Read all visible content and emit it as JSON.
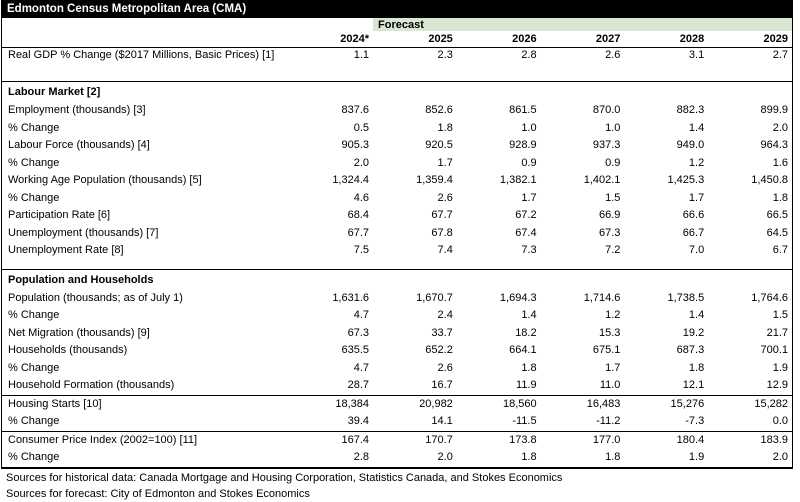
{
  "title": "Edmonton Census Metropolitan Area (CMA)",
  "colors": {
    "title_bg": "#000000",
    "title_fg": "#ffffff",
    "forecast_band": "#d9e6d2",
    "border": "#000000"
  },
  "header": {
    "forecast_label": "Forecast",
    "years": [
      "2024*",
      "2025",
      "2026",
      "2027",
      "2028",
      "2029"
    ]
  },
  "table": {
    "rows": [
      {
        "kind": "data",
        "variant": "first",
        "rule": true,
        "label": "Real GDP % Change ($2017 Millions, Basic Prices) [1]",
        "values": [
          "1.1",
          "2.3",
          "2.8",
          "2.6",
          "3.1",
          "2.7"
        ]
      },
      {
        "kind": "spacer-tall"
      },
      {
        "kind": "section",
        "rule": true,
        "label": "Labour Market [2]"
      },
      {
        "kind": "data",
        "label": "Employment (thousands) [3]",
        "values": [
          "837.6",
          "852.6",
          "861.5",
          "870.0",
          "882.3",
          "899.9"
        ]
      },
      {
        "kind": "data",
        "label": "% Change",
        "values": [
          "0.5",
          "1.8",
          "1.0",
          "1.0",
          "1.4",
          "2.0"
        ]
      },
      {
        "kind": "data",
        "label": "Labour Force (thousands) [4]",
        "values": [
          "905.3",
          "920.5",
          "928.9",
          "937.3",
          "949.0",
          "964.3"
        ]
      },
      {
        "kind": "data",
        "label": "% Change",
        "values": [
          "2.0",
          "1.7",
          "0.9",
          "0.9",
          "1.2",
          "1.6"
        ]
      },
      {
        "kind": "data",
        "label": "Working Age Population (thousands) [5]",
        "values": [
          "1,324.4",
          "1,359.4",
          "1,382.1",
          "1,402.1",
          "1,425.3",
          "1,450.8"
        ]
      },
      {
        "kind": "data",
        "label": "% Change",
        "values": [
          "4.6",
          "2.6",
          "1.7",
          "1.5",
          "1.7",
          "1.8"
        ]
      },
      {
        "kind": "data",
        "label": "Participation Rate [6]",
        "values": [
          "68.4",
          "67.7",
          "67.2",
          "66.9",
          "66.6",
          "66.5"
        ]
      },
      {
        "kind": "data",
        "label": "Unemployment (thousands) [7]",
        "values": [
          "67.7",
          "67.8",
          "67.4",
          "67.3",
          "66.7",
          "64.5"
        ]
      },
      {
        "kind": "data",
        "label": "Unemployment Rate [8]",
        "values": [
          "7.5",
          "7.4",
          "7.3",
          "7.2",
          "7.0",
          "6.7"
        ]
      },
      {
        "kind": "spacer-short"
      },
      {
        "kind": "section",
        "rule": true,
        "label": "Population and Households"
      },
      {
        "kind": "data",
        "label": "Population (thousands; as of July 1)",
        "values": [
          "1,631.6",
          "1,670.7",
          "1,694.3",
          "1,714.6",
          "1,738.5",
          "1,764.6"
        ]
      },
      {
        "kind": "data",
        "label": "% Change",
        "values": [
          "4.7",
          "2.4",
          "1.4",
          "1.2",
          "1.4",
          "1.5"
        ]
      },
      {
        "kind": "data",
        "label": "Net Migration (thousands) [9]",
        "values": [
          "67.3",
          "33.7",
          "18.2",
          "15.3",
          "19.2",
          "21.7"
        ]
      },
      {
        "kind": "data",
        "label": "Households (thousands)",
        "values": [
          "635.5",
          "652.2",
          "664.1",
          "675.1",
          "687.3",
          "700.1"
        ]
      },
      {
        "kind": "data",
        "label": "% Change",
        "values": [
          "4.7",
          "2.6",
          "1.8",
          "1.7",
          "1.8",
          "1.9"
        ]
      },
      {
        "kind": "data",
        "label": "Household Formation (thousands)",
        "values": [
          "28.7",
          "16.7",
          "11.9",
          "11.0",
          "12.1",
          "12.9"
        ]
      },
      {
        "kind": "data",
        "rule": true,
        "label": "Housing Starts [10]",
        "values": [
          "18,384",
          "20,982",
          "18,560",
          "16,483",
          "15,276",
          "15,282"
        ]
      },
      {
        "kind": "data",
        "label": "% Change",
        "values": [
          "39.4",
          "14.1",
          "-11.5",
          "-11.2",
          "-7.3",
          "0.0"
        ]
      },
      {
        "kind": "data",
        "rule": true,
        "label": "Consumer Price Index (2002=100) [11]",
        "values": [
          "167.4",
          "170.7",
          "173.8",
          "177.0",
          "180.4",
          "183.9"
        ]
      },
      {
        "kind": "data",
        "label": "% Change",
        "values": [
          "2.8",
          "2.0",
          "1.8",
          "1.8",
          "1.9",
          "2.0"
        ]
      }
    ]
  },
  "footnotes": [
    "Sources for historical data: Canada Mortgage and Housing Corporation, Statistics Canada, and Stokes Economics",
    "Sources for forecast: City of Edmonton and Stokes Economics"
  ]
}
